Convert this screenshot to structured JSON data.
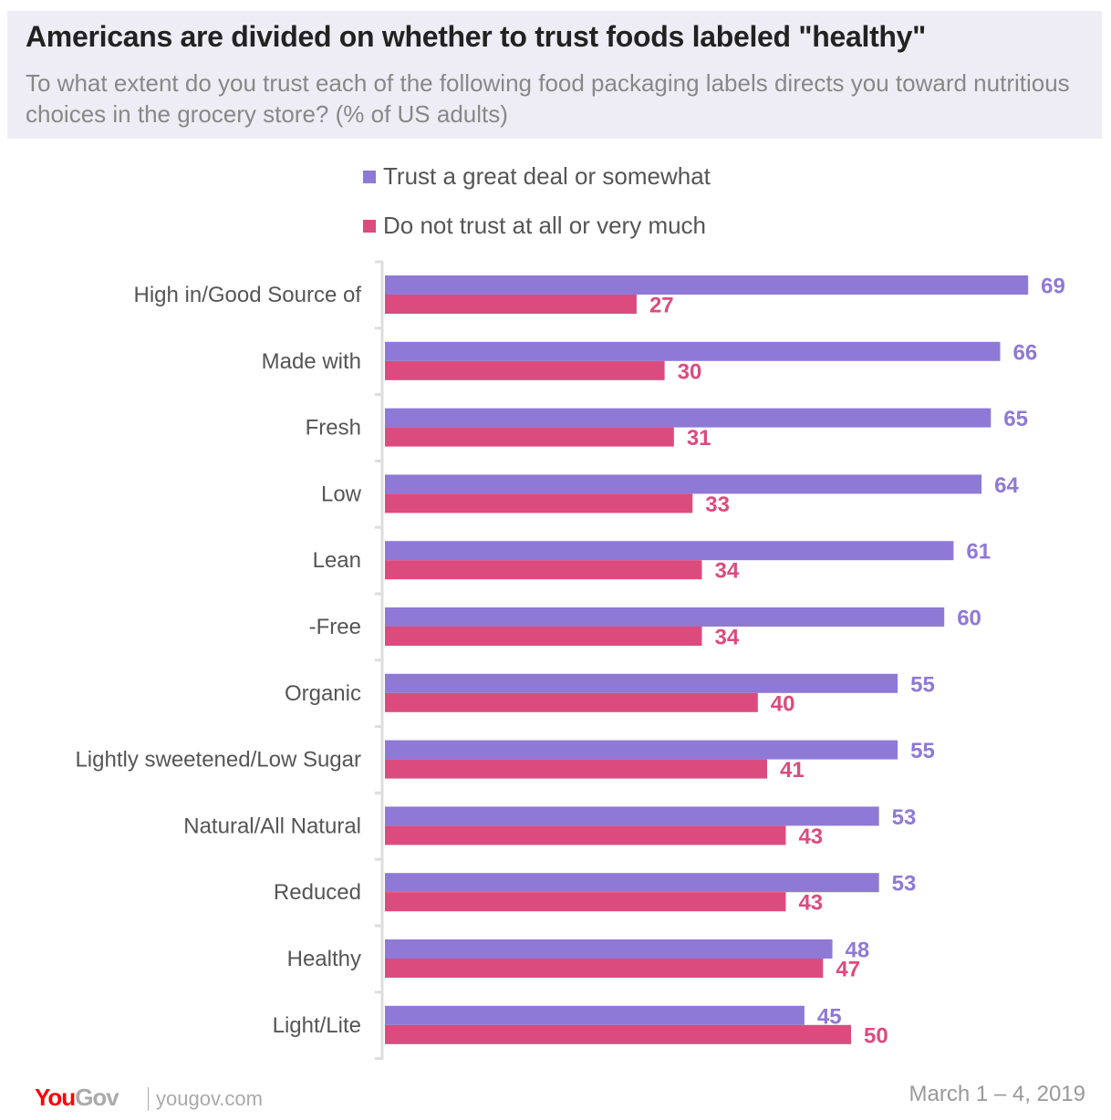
{
  "header": {
    "title": "Americans are divided on whether to trust foods labeled \"healthy\"",
    "subtitle": "To what extent do you trust each of the following food packaging labels directs you toward nutritious choices in the grocery store? (% of US adults)"
  },
  "chart_data": {
    "type": "bar",
    "orientation": "horizontal",
    "categories": [
      "High in/Good Source of",
      "Made with",
      "Fresh",
      "Low",
      "Lean",
      "-Free",
      "Organic",
      "Lightly sweetened/Low Sugar",
      "Natural/All Natural",
      "Reduced",
      "Healthy",
      "Light/Lite"
    ],
    "series": [
      {
        "name": "Trust a great deal or somewhat",
        "color": "#8f79d6",
        "values": [
          69,
          66,
          65,
          64,
          61,
          60,
          55,
          55,
          53,
          53,
          48,
          45
        ]
      },
      {
        "name": "Do not trust at all or very much",
        "color": "#dc4b7e",
        "values": [
          27,
          30,
          31,
          33,
          34,
          34,
          40,
          41,
          43,
          43,
          47,
          50
        ]
      }
    ],
    "legend_position": "top",
    "grid": false,
    "data_labels": true
  },
  "footer": {
    "logo_you": "You",
    "logo_gov": "Gov",
    "site": "yougov.com",
    "date": "March 1 – 4, 2019"
  }
}
